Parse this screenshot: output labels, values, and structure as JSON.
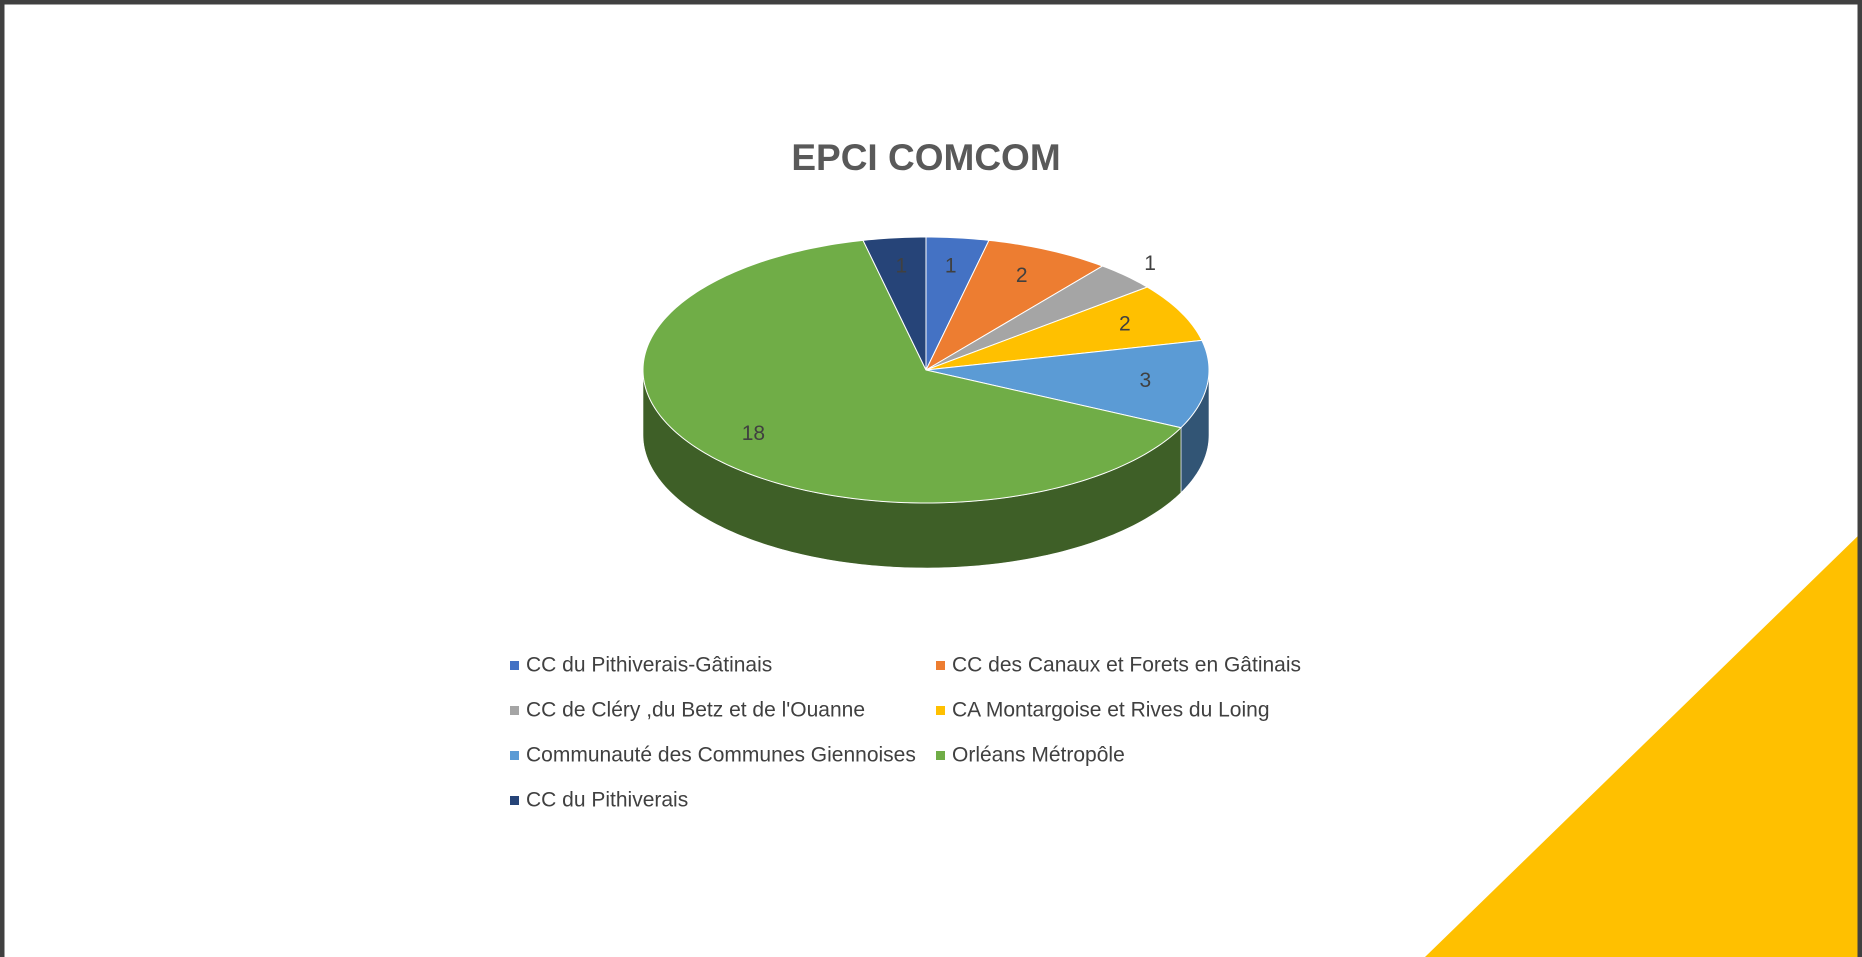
{
  "chart_data": {
    "type": "pie",
    "title": "EPCI COMCOM",
    "categories": [
      "CC du Pithiverais-Gâtinais",
      "CC des Canaux et Forets en Gâtinais",
      "CC de Cléry ,du Betz et de l'Ouanne",
      "CA Montargoise et Rives du Loing",
      "Communauté des Communes Giennoises",
      "Orléans Métropôle",
      "CC du Pithiverais"
    ],
    "values": [
      1,
      2,
      1,
      2,
      3,
      18,
      1
    ],
    "colors": [
      "#4472c4",
      "#ed7d31",
      "#a5a5a5",
      "#ffc000",
      "#5b9bd5",
      "#70ad47",
      "#264478"
    ],
    "legend": "bottom"
  }
}
